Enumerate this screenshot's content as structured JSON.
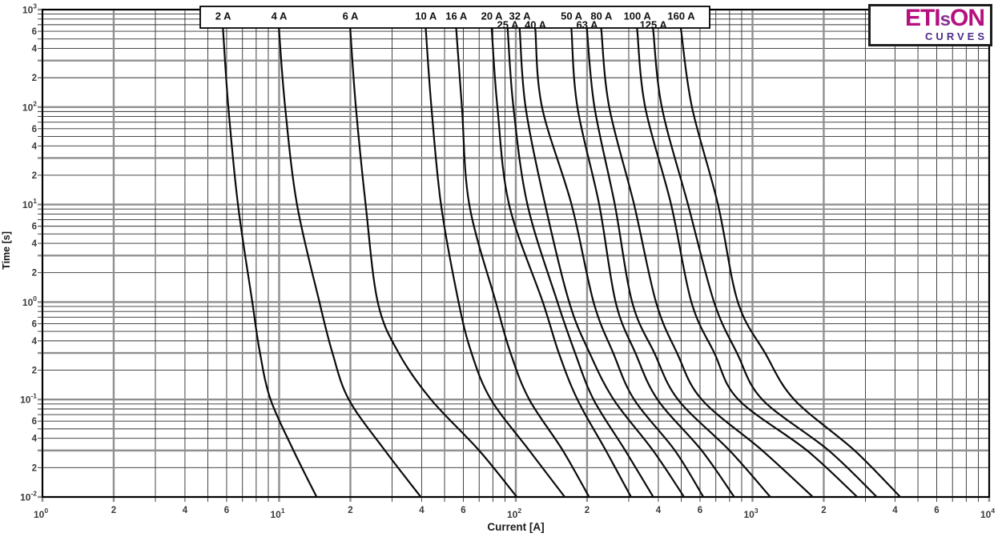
{
  "page": {
    "background": "#ffffff"
  },
  "logo": {
    "part1": "ETI",
    "part_s": "s",
    "part2": "ON",
    "subtitle": "CURVES",
    "magenta": "#b5107f",
    "s_purple": "#8a2e93",
    "subtitle_purple": "#4b2c8a"
  },
  "axes": {
    "x_title": "Current [A]",
    "y_title": "Time [s]",
    "x_exponents": [
      0,
      1,
      2,
      3,
      4
    ],
    "y_exponents": [
      -2,
      -1,
      0,
      1,
      2,
      3
    ],
    "minor_tick_labels": [
      2,
      4,
      6
    ],
    "tick_color": "#3b3b3b",
    "title_color": "#1a1a1a",
    "grid_minor_color": "#2f2f2f",
    "grid_major_color": "#8f8f8f",
    "curve_color": "#0b0b0b"
  },
  "chart_data": {
    "type": "line",
    "title": "",
    "xlabel": "Current [A]",
    "ylabel": "Time [s]",
    "x_scale": "log",
    "y_scale": "log",
    "xlim": [
      1,
      10000
    ],
    "ylim": [
      0.01,
      1000
    ],
    "grid": true,
    "legend_position": "top-box",
    "points_format": "[time_s, current_A]",
    "series": [
      {
        "name": "2 A",
        "rated_amps": 2,
        "label_row": 1,
        "points": [
          [
            600,
            5.8
          ],
          [
            100,
            6.1
          ],
          [
            10,
            6.7
          ],
          [
            1,
            7.7
          ],
          [
            0.3,
            8.3
          ],
          [
            0.1,
            9.2
          ],
          [
            0.03,
            11.5
          ],
          [
            0.01,
            14.4
          ]
        ]
      },
      {
        "name": "4 A",
        "rated_amps": 4,
        "label_row": 1,
        "points": [
          [
            600,
            10
          ],
          [
            100,
            10.6
          ],
          [
            10,
            11.9
          ],
          [
            1,
            14.8
          ],
          [
            0.3,
            16.8
          ],
          [
            0.1,
            19.7
          ],
          [
            0.03,
            28
          ],
          [
            0.01,
            39.7
          ]
        ]
      },
      {
        "name": "6 A",
        "rated_amps": 6,
        "label_row": 1,
        "points": [
          [
            600,
            20
          ],
          [
            100,
            21.1
          ],
          [
            10,
            23.2
          ],
          [
            1,
            26.1
          ],
          [
            0.3,
            32
          ],
          [
            0.1,
            43.8
          ],
          [
            0.03,
            70
          ],
          [
            0.01,
            101
          ]
        ]
      },
      {
        "name": "10 A",
        "rated_amps": 10,
        "label_row": 1,
        "points": [
          [
            600,
            41.7
          ],
          [
            100,
            44
          ],
          [
            10,
            48.3
          ],
          [
            1,
            57.3
          ],
          [
            0.3,
            65
          ],
          [
            0.1,
            78.5
          ],
          [
            0.03,
            114
          ],
          [
            0.01,
            161
          ]
        ]
      },
      {
        "name": "16 A",
        "rated_amps": 16,
        "label_row": 1,
        "points": [
          [
            600,
            56.1
          ],
          [
            100,
            59.2
          ],
          [
            10,
            63.6
          ],
          [
            1,
            82.3
          ],
          [
            0.3,
            95
          ],
          [
            0.1,
            114
          ],
          [
            0.03,
            158
          ],
          [
            0.01,
            204
          ]
        ]
      },
      {
        "name": "20 A",
        "rated_amps": 20,
        "label_row": 1,
        "points": [
          [
            600,
            79.2
          ],
          [
            100,
            83.6
          ],
          [
            10,
            93.7
          ],
          [
            1,
            130
          ],
          [
            0.3,
            152
          ],
          [
            0.1,
            182
          ],
          [
            0.03,
            240
          ],
          [
            0.01,
            307
          ]
        ]
      },
      {
        "name": "25 A",
        "rated_amps": 25,
        "label_row": 2,
        "points": [
          [
            600,
            92.5
          ],
          [
            100,
            97.7
          ],
          [
            10,
            112
          ],
          [
            1,
            150
          ],
          [
            0.3,
            178
          ],
          [
            0.1,
            213
          ],
          [
            0.03,
            290
          ],
          [
            0.01,
            381
          ]
        ]
      },
      {
        "name": "32 A",
        "rated_amps": 32,
        "label_row": 1,
        "points": [
          [
            600,
            104
          ],
          [
            100,
            110
          ],
          [
            10,
            133
          ],
          [
            1,
            168
          ],
          [
            0.3,
            205
          ],
          [
            0.1,
            259
          ],
          [
            0.03,
            380
          ],
          [
            0.01,
            514
          ]
        ]
      },
      {
        "name": "40 A",
        "rated_amps": 40,
        "label_row": 2,
        "points": [
          [
            600,
            121
          ],
          [
            100,
            129
          ],
          [
            10,
            172
          ],
          [
            1,
            213
          ],
          [
            0.3,
            258
          ],
          [
            0.1,
            316
          ],
          [
            0.03,
            470
          ],
          [
            0.01,
            620
          ]
        ]
      },
      {
        "name": "50 A",
        "rated_amps": 50,
        "label_row": 1,
        "points": [
          [
            600,
            172
          ],
          [
            100,
            182
          ],
          [
            10,
            225
          ],
          [
            1,
            264
          ],
          [
            0.3,
            320
          ],
          [
            0.1,
            397
          ],
          [
            0.03,
            610
          ],
          [
            0.01,
            837
          ]
        ]
      },
      {
        "name": "63 A",
        "rated_amps": 63,
        "label_row": 2,
        "points": [
          [
            600,
            200
          ],
          [
            100,
            215
          ],
          [
            10,
            262
          ],
          [
            1,
            310
          ],
          [
            0.3,
            385
          ],
          [
            0.1,
            484
          ],
          [
            0.03,
            800
          ],
          [
            0.01,
            1190
          ]
        ]
      },
      {
        "name": "80 A",
        "rated_amps": 80,
        "label_row": 1,
        "points": [
          [
            600,
            230
          ],
          [
            100,
            248
          ],
          [
            10,
            316
          ],
          [
            1,
            391
          ],
          [
            0.3,
            480
          ],
          [
            0.1,
            610
          ],
          [
            0.03,
            1100
          ],
          [
            0.01,
            1800
          ]
        ]
      },
      {
        "name": "100 A",
        "rated_amps": 100,
        "label_row": 1,
        "points": [
          [
            600,
            326
          ],
          [
            100,
            352
          ],
          [
            10,
            453
          ],
          [
            1,
            552
          ],
          [
            0.3,
            690
          ],
          [
            0.1,
            871
          ],
          [
            0.03,
            1700
          ],
          [
            0.01,
            2770
          ]
        ]
      },
      {
        "name": "125 A",
        "rated_amps": 125,
        "label_row": 2,
        "points": [
          [
            600,
            381
          ],
          [
            100,
            414
          ],
          [
            10,
            534
          ],
          [
            1,
            688
          ],
          [
            0.3,
            860
          ],
          [
            0.1,
            1100
          ],
          [
            0.03,
            2100
          ],
          [
            0.01,
            3350
          ]
        ]
      },
      {
        "name": "160 A",
        "rated_amps": 160,
        "label_row": 1,
        "points": [
          [
            600,
            500
          ],
          [
            100,
            555
          ],
          [
            10,
            715
          ],
          [
            1,
            867
          ],
          [
            0.3,
            1130
          ],
          [
            0.1,
            1500
          ],
          [
            0.03,
            2700
          ],
          [
            0.01,
            4210
          ]
        ]
      }
    ]
  }
}
